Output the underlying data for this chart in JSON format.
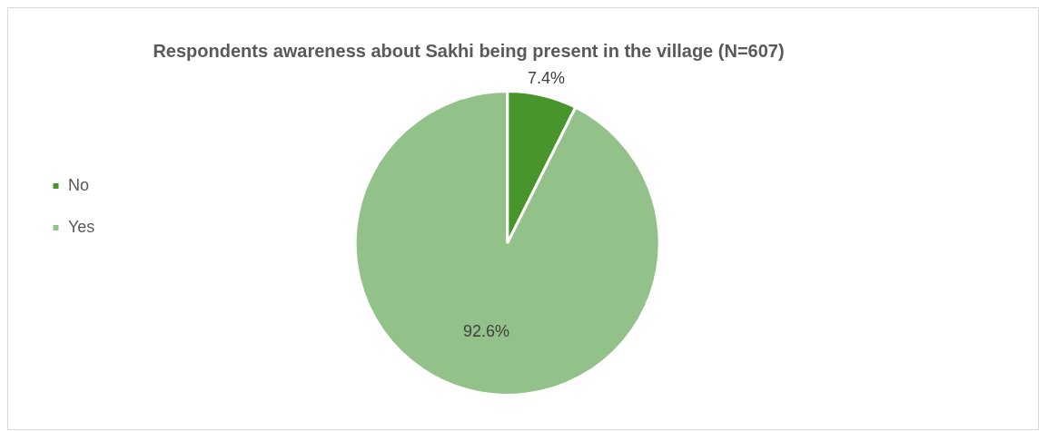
{
  "chart_data": {
    "type": "pie",
    "title": "Respondents awareness about Sakhi being present in the village (N=607)",
    "categories": [
      "No",
      "Yes"
    ],
    "values": [
      7.4,
      92.6
    ],
    "value_labels": [
      "7.4%",
      "92.6%"
    ],
    "colors": [
      "#48962b",
      "#93c18a"
    ],
    "legend": "left"
  }
}
